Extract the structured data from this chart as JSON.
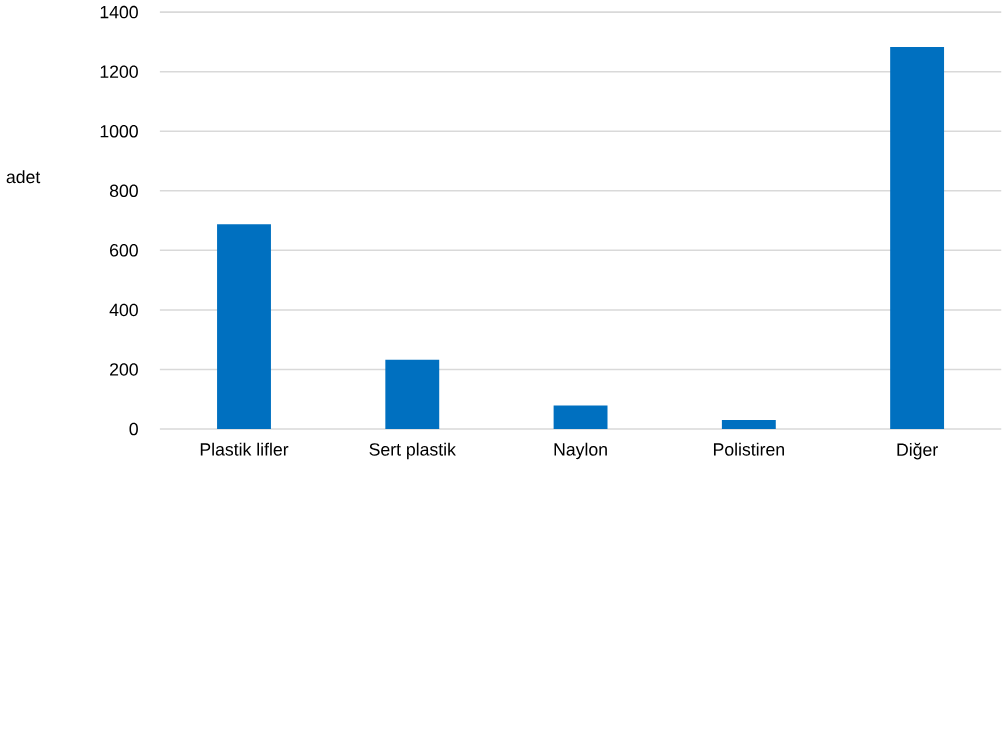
{
  "chart_data": {
    "type": "bar",
    "ylabel": "adet",
    "categories": [
      "Plastik lifler",
      "Sert plastik",
      "Naylon",
      "Polistiren",
      "Diğer"
    ],
    "values": [
      688,
      233,
      79,
      30,
      1283
    ],
    "color": "#0070c0",
    "ylim": [
      0,
      1400
    ],
    "yticks": [
      0,
      200,
      400,
      600,
      800,
      1000,
      1200,
      1400
    ],
    "grid": "y"
  }
}
